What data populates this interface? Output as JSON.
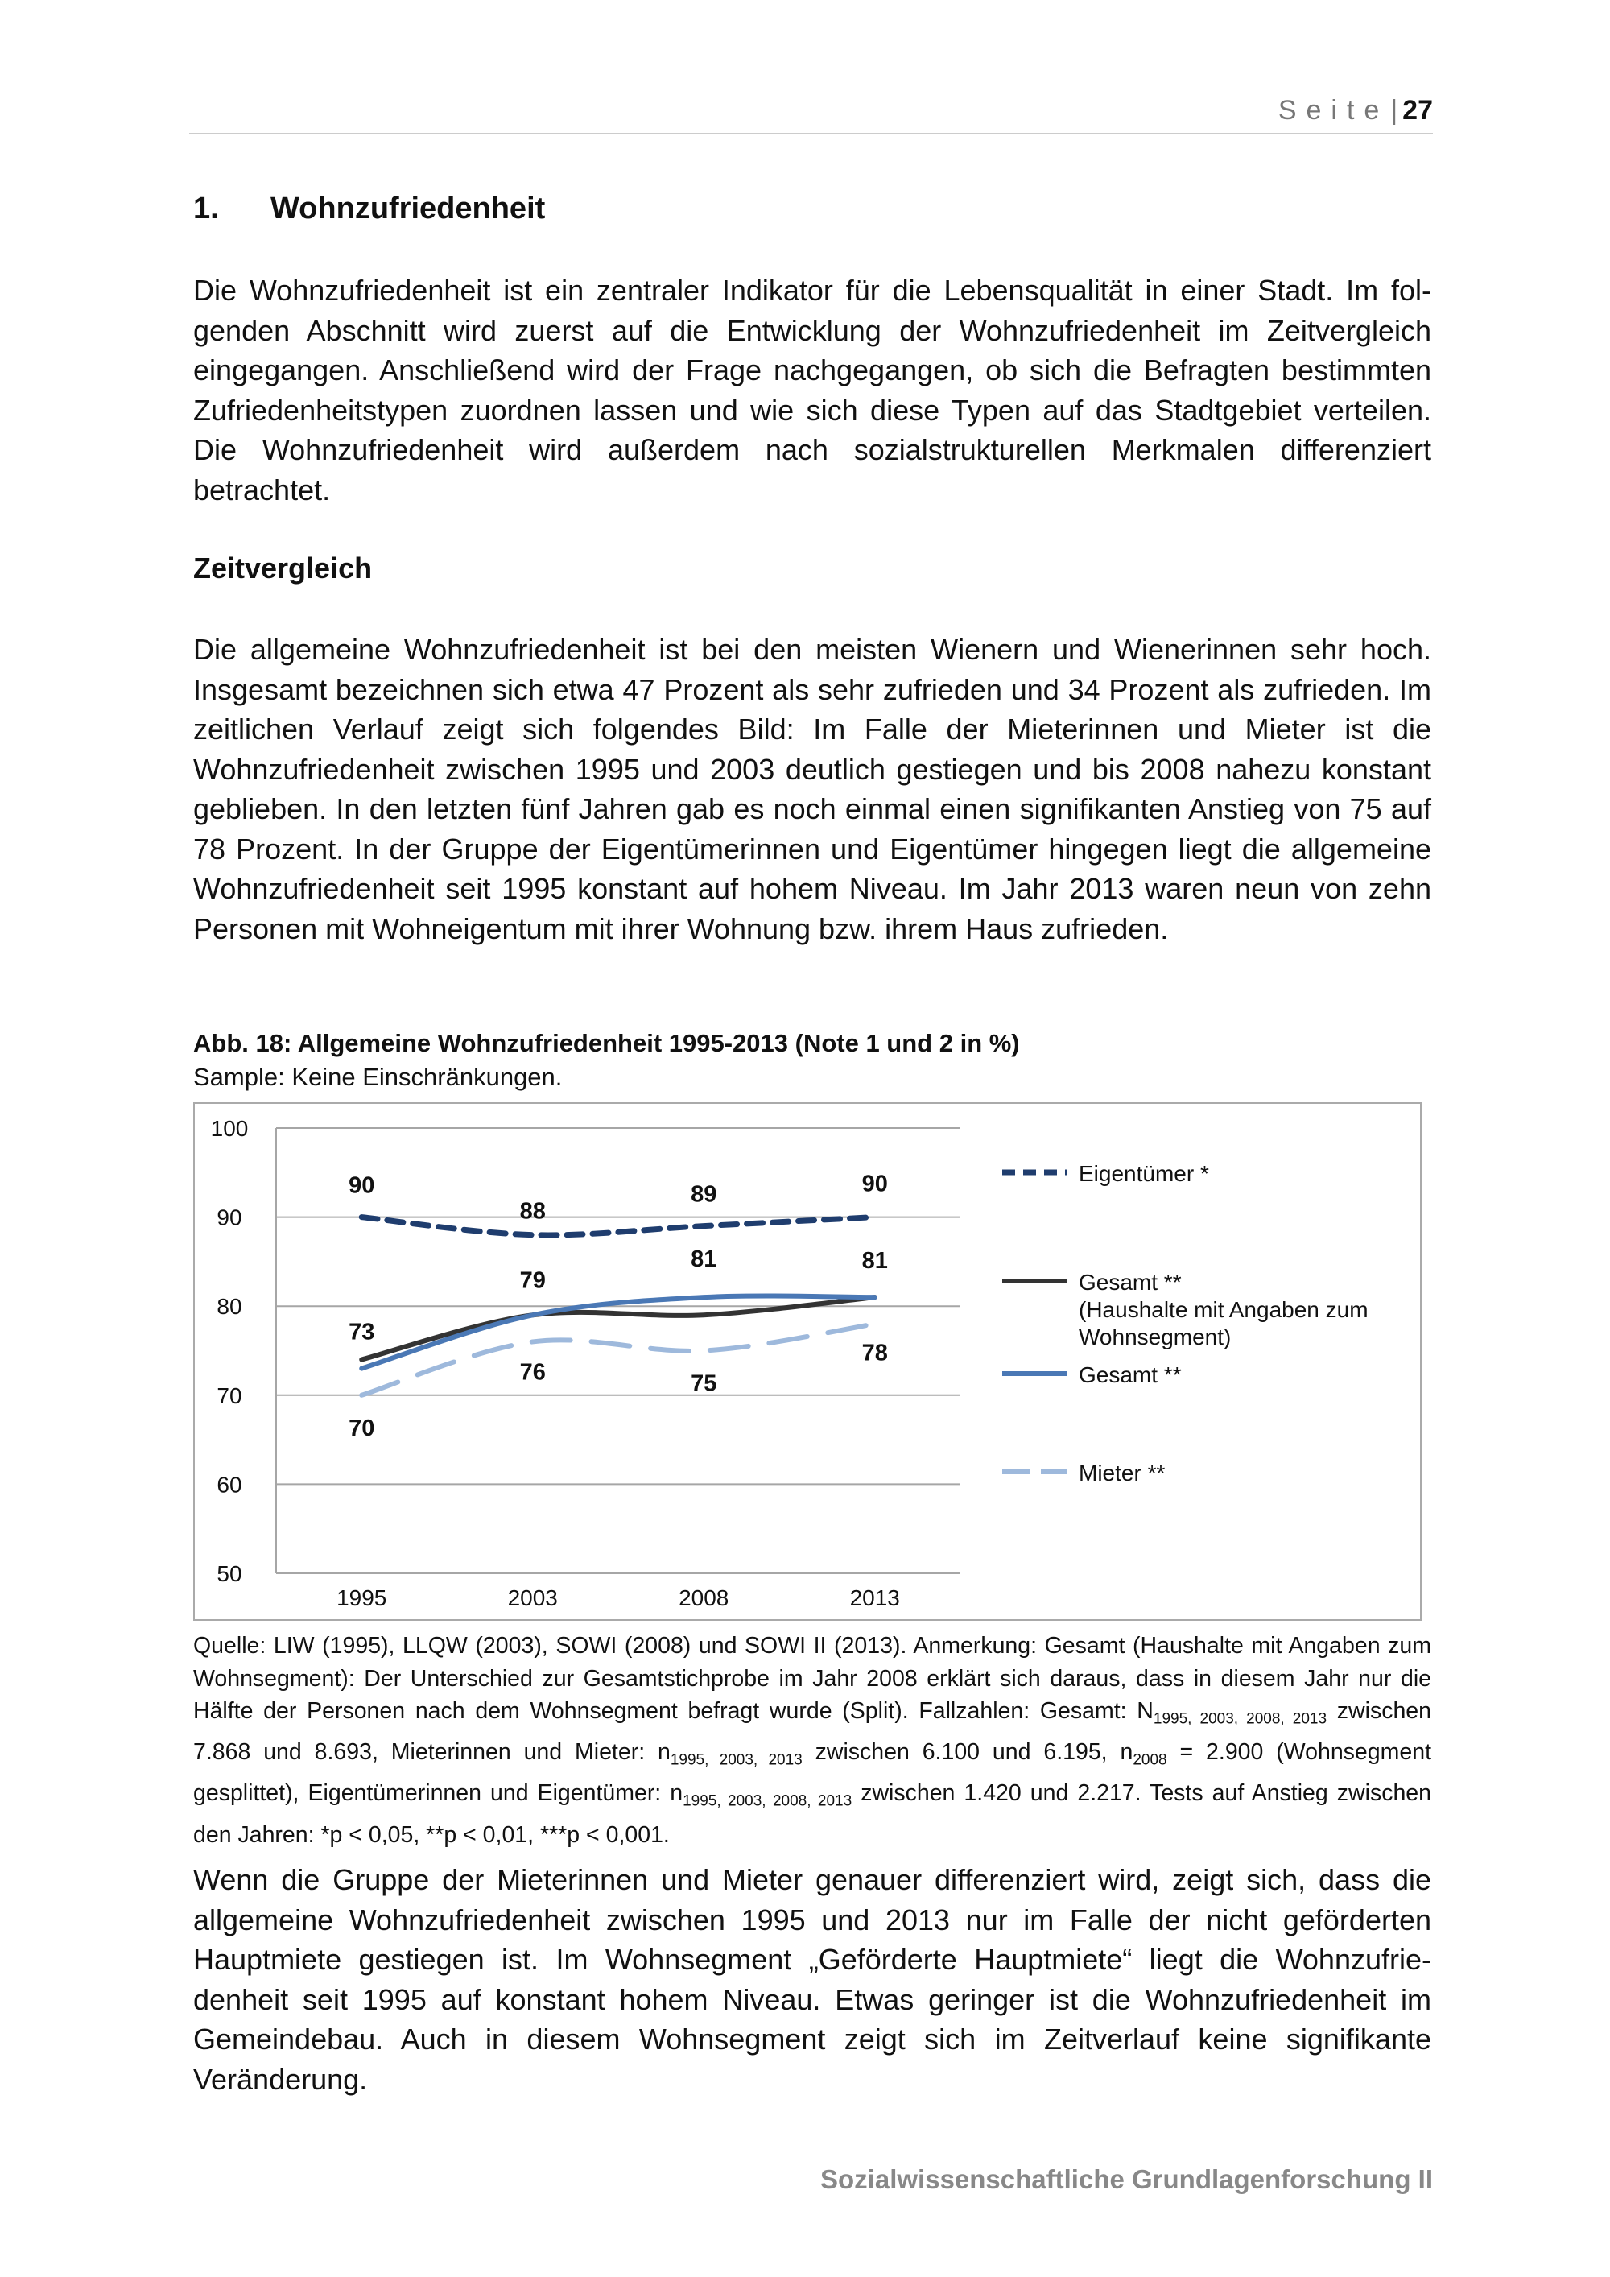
{
  "header": {
    "label": "Seite",
    "separator": "|",
    "page_number": "27"
  },
  "section": {
    "number": "1.",
    "title": "Wohnzufriedenheit"
  },
  "intro_paragraph": "Die Wohnzufriedenheit ist ein zentraler Indikator für die Lebensqualität in einer Stadt. Im fol­genden Abschnitt wird zuerst auf die Entwicklung der Wohnzufriedenheit im Zeitvergleich eingegangen. Anschließend wird der Frage nachgegangen, ob sich die Befragten bestimm­ten Zufriedenheitstypen zuordnen lassen und wie sich diese Typen auf das Stadtgebiet ver­teilen. Die Wohnzufriedenheit wird außerdem nach sozialstrukturellen Merkmalen differen­ziert betrachtet.",
  "subheading": "Zeitvergleich",
  "comparison_paragraph": "Die allgemeine Wohnzufriedenheit ist bei den meisten Wienern und Wienerinnen sehr hoch. Insgesamt bezeichnen sich etwa 47 Prozent als sehr zufrieden und 34 Prozent als zufrieden. Im zeitlichen Verlauf zeigt sich folgendes Bild: Im Falle der Mieterinnen und Mieter ist die Wohnzufriedenheit zwischen 1995 und 2003 deutlich gestiegen und bis 2008 nahezu kon­stant geblieben. In den letzten fünf Jahren gab es noch einmal einen signifikanten Anstieg von 75 auf 78 Prozent. In der Gruppe der Eigentümerinnen und Eigentümer hingegen liegt die allgemeine Wohnzufriedenheit seit 1995 konstant auf hohem Niveau. Im Jahr 2013 wa­ren neun von zehn Personen mit Wohneigentum mit ihrer Wohnung bzw. ihrem Haus zufrie­den.",
  "figure": {
    "caption": "Abb. 18: Allgemeine Wohnzufriedenheit 1995-2013 (Note 1 und 2 in %)",
    "sample": "Sample: Keine Einschränkungen."
  },
  "chart_data": {
    "type": "line",
    "x": [
      "1995",
      "2003",
      "2008",
      "2013"
    ],
    "ylim": [
      50,
      100
    ],
    "yticks": [
      "50",
      "60",
      "70",
      "80",
      "90",
      "100"
    ],
    "grid": true,
    "legend_position": "right",
    "series": [
      {
        "name": "Eigentümer *",
        "values": [
          90,
          88,
          89,
          90
        ],
        "color": "#1f3d6e",
        "dash": "short-dash"
      },
      {
        "name": "Gesamt ** (Haushalte mit Angaben zum Wohnsegment)",
        "legend_lines": [
          "Gesamt **",
          "(Haushalte mit Angaben zum",
          "Wohnsegment)"
        ],
        "values": [
          74,
          79,
          79,
          81
        ],
        "color": "#333333",
        "dash": "solid"
      },
      {
        "name": "Gesamt **",
        "values": [
          73,
          79,
          81,
          81
        ],
        "color": "#4a78b5",
        "dash": "solid"
      },
      {
        "name": "Mieter **",
        "values": [
          70,
          76,
          75,
          78
        ],
        "color": "#9eb9dc",
        "dash": "long-dash"
      }
    ],
    "data_labels": [
      {
        "series": 0,
        "values": [
          "90",
          "88",
          "89",
          "90"
        ]
      },
      {
        "series": 2,
        "values": [
          "73",
          "79",
          "81",
          "81"
        ]
      },
      {
        "series": 3,
        "values": [
          "70",
          "76",
          "75",
          "78"
        ]
      }
    ]
  },
  "source_note": {
    "part1": "Quelle: LIW (1995), LLQW (2003), SOWI (2008) und SOWI II (2013). Anmerkung: Gesamt (Haushalte mit Anga­ben zum Wohnsegment): Der Unterschied zur Gesamtstichprobe im Jahr 2008 erklärt sich daraus, dass in die­sem Jahr nur die Hälfte der Personen nach dem Wohnsegment befragt wurde (Split). Fallzahlen: Gesamt: N",
    "sub1": "1995, 2003, 2008, 2013",
    "part2": " zwischen 7.868 und 8.693, Mieterinnen und Mieter: n",
    "sub2": "1995, 2003, 2013",
    "part3": " zwischen 6.100 und 6.195, n",
    "sub3": "2008",
    "part4": " = 2.900 (Wohnsegment gesplittet), Eigentümerinnen und Eigentümer: n",
    "sub4": "1995, 2003, 2008, 2013",
    "part5": " zwischen 1.420 und 2.217. Tests auf Anstieg zwischen den Jahren: *p < 0,05, **p < 0,01, ***p < 0,001."
  },
  "closing_paragraph": "Wenn die Gruppe der Mieterinnen und Mieter genauer differenziert wird, zeigt sich, dass die allgemeine Wohnzufriedenheit zwischen 1995 und 2013 nur im Falle der nicht geförderten Hauptmiete gestiegen ist. Im Wohnsegment „Geförderte Hauptmiete“ liegt die Wohnzufrie­denheit seit 1995 auf konstant hohem Niveau. Etwas geringer ist die Wohnzufriedenheit im Gemeindebau. Auch in diesem Wohnsegment zeigt sich im Zeitverlauf keine signifikante Veränderung.",
  "footer": "Sozialwissenschaftliche Grundlagenforschung II"
}
